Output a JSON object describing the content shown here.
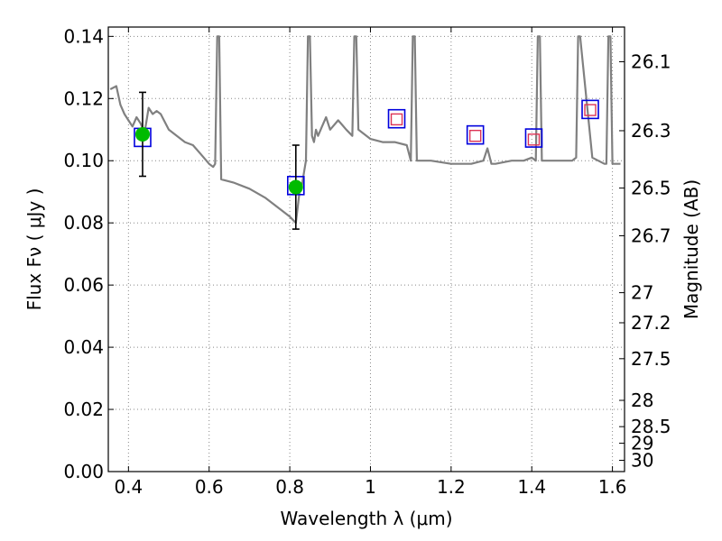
{
  "chart_data": {
    "type": "line",
    "title": "",
    "xlabel": "Wavelength  λ (μm)",
    "ylabel": "Flux  Fν  ( μJy )",
    "ylabel_right": "Magnitude (AB)",
    "xlim": [
      0.35,
      1.63
    ],
    "ylim": [
      0,
      0.143
    ],
    "grid": true,
    "x_ticks": [
      0.4,
      0.6,
      0.8,
      1.0,
      1.2,
      1.4,
      1.6
    ],
    "x_tick_labels": [
      "0.4",
      "0.6",
      "0.8",
      "1",
      "1.2",
      "1.4",
      "1.6"
    ],
    "y_ticks": [
      0.0,
      0.02,
      0.04,
      0.06,
      0.08,
      0.1,
      0.12,
      0.14
    ],
    "y_tick_labels": [
      "0.00",
      "0.02",
      "0.04",
      "0.06",
      "0.08",
      "0.10",
      "0.12",
      "0.14"
    ],
    "right_ticks": [
      {
        "label": "26.1",
        "mag": 26.1
      },
      {
        "label": "26.3",
        "mag": 26.3
      },
      {
        "label": "26.5",
        "mag": 26.5
      },
      {
        "label": "26.7",
        "mag": 26.7
      },
      {
        "label": "27",
        "mag": 27.0
      },
      {
        "label": "27.2",
        "mag": 27.2
      },
      {
        "label": "27.5",
        "mag": 27.5
      },
      {
        "label": "28",
        "mag": 28.0
      },
      {
        "label": "28.5",
        "mag": 28.5
      },
      {
        "label": "29",
        "mag": 29.0
      },
      {
        "label": "30",
        "mag": 30.0
      }
    ],
    "colors": {
      "spectrum": "#808080",
      "observed": "#00bb00",
      "model_box": "#0000dd",
      "limit_box": "#dd3355",
      "errorbar": "#000000",
      "grid": "#888888"
    },
    "series": [
      {
        "kind": "model-spectrum",
        "x": [
          0.355,
          0.37,
          0.38,
          0.39,
          0.4,
          0.41,
          0.42,
          0.43,
          0.44,
          0.45,
          0.46,
          0.47,
          0.48,
          0.5,
          0.52,
          0.54,
          0.56,
          0.58,
          0.6,
          0.61,
          0.615,
          0.62,
          0.625,
          0.63,
          0.66,
          0.7,
          0.74,
          0.78,
          0.8,
          0.815,
          0.825,
          0.83,
          0.835,
          0.84,
          0.845,
          0.85,
          0.855,
          0.86,
          0.865,
          0.87,
          0.88,
          0.89,
          0.9,
          0.92,
          0.94,
          0.955,
          0.96,
          0.965,
          0.97,
          1.0,
          1.03,
          1.06,
          1.09,
          1.1,
          1.105,
          1.11,
          1.115,
          1.12,
          1.15,
          1.2,
          1.25,
          1.28,
          1.29,
          1.3,
          1.31,
          1.35,
          1.38,
          1.4,
          1.41,
          1.415,
          1.42,
          1.425,
          1.43,
          1.45,
          1.5,
          1.51,
          1.515,
          1.52,
          1.55,
          1.58,
          1.585,
          1.59,
          1.595,
          1.6,
          1.62
        ],
        "y": [
          0.123,
          0.124,
          0.118,
          0.115,
          0.113,
          0.111,
          0.114,
          0.112,
          0.109,
          0.117,
          0.115,
          0.116,
          0.115,
          0.11,
          0.108,
          0.106,
          0.105,
          0.102,
          0.099,
          0.098,
          0.099,
          0.14,
          0.14,
          0.094,
          0.093,
          0.091,
          0.088,
          0.084,
          0.082,
          0.08,
          0.091,
          0.092,
          0.096,
          0.1,
          0.14,
          0.14,
          0.108,
          0.106,
          0.11,
          0.108,
          0.111,
          0.114,
          0.11,
          0.113,
          0.11,
          0.108,
          0.14,
          0.14,
          0.11,
          0.107,
          0.106,
          0.106,
          0.105,
          0.1,
          0.14,
          0.14,
          0.1,
          0.1,
          0.1,
          0.099,
          0.099,
          0.1,
          0.104,
          0.099,
          0.099,
          0.1,
          0.1,
          0.101,
          0.1,
          0.14,
          0.14,
          0.1,
          0.1,
          0.1,
          0.1,
          0.101,
          0.14,
          0.14,
          0.101,
          0.099,
          0.099,
          0.14,
          0.14,
          0.099,
          0.099
        ]
      },
      {
        "kind": "observed",
        "points": [
          {
            "x": 0.435,
            "y": 0.1085,
            "err": 0.0135
          },
          {
            "x": 0.815,
            "y": 0.0915,
            "err": 0.0135
          }
        ]
      },
      {
        "kind": "model-photometry",
        "points": [
          {
            "x": 0.435,
            "y": 0.1075
          },
          {
            "x": 0.815,
            "y": 0.092
          },
          {
            "x": 1.065,
            "y": 0.1135
          },
          {
            "x": 1.26,
            "y": 0.1083
          },
          {
            "x": 1.405,
            "y": 0.1073
          },
          {
            "x": 1.545,
            "y": 0.1165
          }
        ]
      },
      {
        "kind": "upper-limit",
        "points": [
          {
            "x": 1.065,
            "y": 0.1133
          },
          {
            "x": 1.26,
            "y": 0.108
          },
          {
            "x": 1.405,
            "y": 0.1068
          },
          {
            "x": 1.545,
            "y": 0.1163
          }
        ]
      }
    ]
  }
}
